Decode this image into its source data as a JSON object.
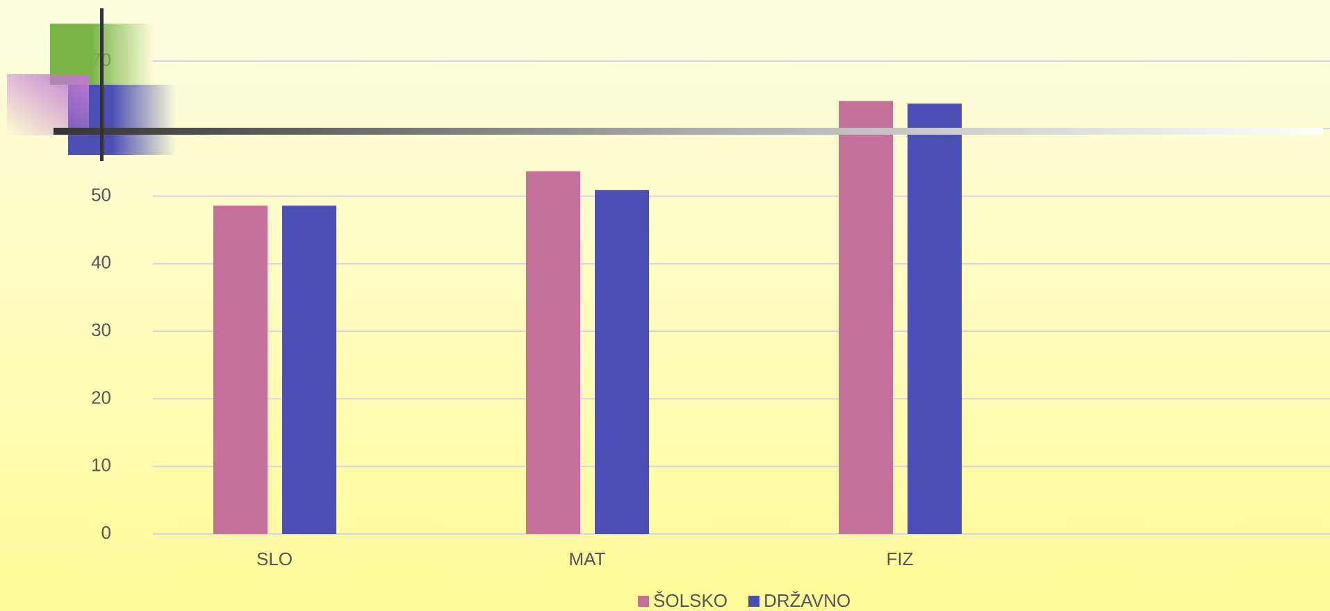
{
  "chart_data": {
    "type": "bar",
    "categories": [
      "SLO",
      "MAT",
      "FIZ"
    ],
    "series": [
      {
        "name": "ŠOLSKO",
        "color": "#c5709a",
        "values": [
          48.6,
          53.7,
          64.1
        ]
      },
      {
        "name": "DRŽAVNO",
        "color": "#4b4fb5",
        "values": [
          48.6,
          50.9,
          63.7
        ]
      }
    ],
    "ylim": [
      0,
      70
    ],
    "yticks": [
      0,
      10,
      20,
      30,
      40,
      50,
      60,
      70
    ],
    "grid": true,
    "legend": "bottom"
  }
}
